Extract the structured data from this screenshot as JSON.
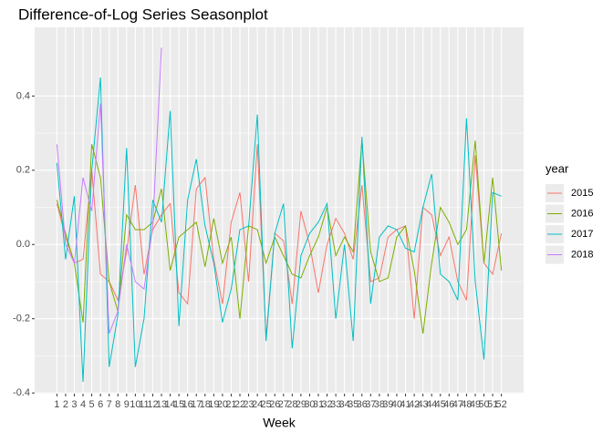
{
  "chart_data": {
    "type": "line",
    "title": "Difference-of-Log Series Seasonplot",
    "x_label": "Week",
    "legend_title": "year",
    "x": [
      1,
      2,
      3,
      4,
      5,
      6,
      7,
      8,
      9,
      10,
      11,
      12,
      13,
      14,
      15,
      16,
      17,
      18,
      19,
      20,
      21,
      22,
      23,
      24,
      25,
      26,
      27,
      28,
      29,
      30,
      31,
      32,
      33,
      34,
      35,
      36,
      37,
      38,
      39,
      40,
      41,
      42,
      43,
      44,
      45,
      46,
      47,
      48,
      49,
      50,
      51,
      52
    ],
    "xlim": [
      -1.55,
      54.55
    ],
    "xticks": [
      1,
      2,
      3,
      4,
      5,
      6,
      7,
      8,
      9,
      10,
      11,
      12,
      13,
      14,
      15,
      16,
      17,
      18,
      19,
      20,
      21,
      22,
      23,
      24,
      25,
      26,
      27,
      28,
      29,
      30,
      31,
      32,
      33,
      34,
      35,
      36,
      37,
      38,
      39,
      40,
      41,
      42,
      43,
      44,
      45,
      46,
      47,
      48,
      49,
      50,
      51,
      52
    ],
    "ylim": [
      -0.402,
      0.585
    ],
    "yticks": [
      -0.4,
      -0.2,
      {
        "value": 0,
        "label": "0.0"
      },
      0.2,
      0.4
    ],
    "grid": true,
    "series": [
      {
        "name": "2015",
        "color": "#F8766D",
        "values": [
          0.11,
          0.02,
          -0.05,
          -0.04,
          0.2,
          -0.08,
          -0.1,
          -0.15,
          -0.02,
          0.16,
          -0.08,
          0.04,
          0.08,
          0.11,
          -0.13,
          -0.16,
          0.15,
          0.18,
          -0.04,
          -0.16,
          0.06,
          0.14,
          -0.1,
          0.27,
          -0.25,
          0.03,
          0.01,
          -0.16,
          0.09,
          0.0,
          -0.13,
          0.0,
          0.07,
          0.03,
          -0.04,
          0.16,
          -0.1,
          -0.09,
          0.02,
          0.04,
          0.05,
          -0.2,
          0.1,
          0.08,
          -0.03,
          0.02,
          -0.1,
          -0.15,
          0.24,
          -0.05,
          -0.08,
          0.03
        ]
      },
      {
        "name": "2016",
        "color": "#7CAE00",
        "values": [
          0.12,
          0.03,
          -0.05,
          -0.21,
          0.27,
          0.18,
          -0.1,
          -0.18,
          0.08,
          0.04,
          0.04,
          0.06,
          0.15,
          -0.07,
          0.02,
          0.04,
          0.06,
          -0.06,
          0.07,
          -0.05,
          0.02,
          -0.2,
          0.05,
          0.04,
          -0.05,
          0.02,
          -0.03,
          -0.08,
          -0.09,
          -0.03,
          0.02,
          0.1,
          -0.03,
          0.02,
          -0.02,
          0.28,
          -0.02,
          -0.1,
          -0.09,
          0.02,
          0.05,
          -0.07,
          -0.24,
          -0.05,
          0.1,
          0.06,
          0.0,
          0.04,
          0.28,
          -0.05,
          0.18,
          -0.07
        ]
      },
      {
        "name": "2017",
        "color": "#00BFC4",
        "values": [
          0.22,
          -0.04,
          0.13,
          -0.37,
          0.2,
          0.45,
          -0.33,
          -0.19,
          0.26,
          -0.33,
          -0.2,
          0.12,
          0.06,
          0.36,
          -0.22,
          0.12,
          0.23,
          0.05,
          -0.05,
          -0.21,
          -0.12,
          0.04,
          0.05,
          0.35,
          -0.26,
          0.03,
          0.11,
          -0.28,
          -0.03,
          0.03,
          0.06,
          0.11,
          -0.2,
          0.0,
          -0.26,
          0.29,
          -0.16,
          0.02,
          0.05,
          0.04,
          -0.01,
          -0.02,
          0.1,
          0.19,
          -0.08,
          -0.1,
          -0.15,
          0.34,
          -0.1,
          -0.31,
          0.14,
          0.13
        ]
      },
      {
        "name": "2018",
        "color": "#C77CFF",
        "values": [
          0.27,
          0.0,
          -0.05,
          0.18,
          0.09,
          0.38,
          -0.24,
          -0.18,
          0.0,
          -0.1,
          -0.12,
          0.05,
          0.53,
          null,
          null,
          null,
          null,
          null,
          null,
          null,
          null,
          null,
          null,
          null,
          null,
          null,
          null,
          null,
          null,
          null,
          null,
          null,
          null,
          null,
          null,
          null,
          null,
          null,
          null,
          null,
          null,
          null,
          null,
          null,
          null,
          null,
          null,
          null,
          null,
          null,
          null,
          null
        ]
      }
    ]
  }
}
